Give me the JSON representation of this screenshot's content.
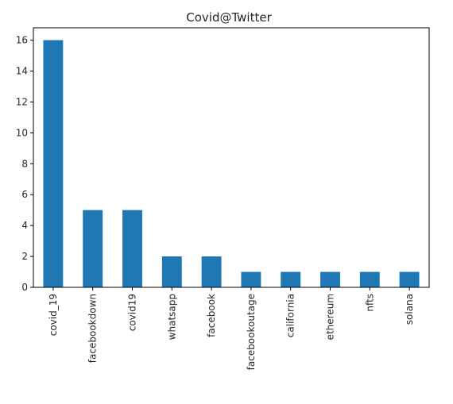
{
  "chart_data": {
    "type": "bar",
    "title": "Covid@Twitter",
    "xlabel": "",
    "ylabel": "",
    "categories": [
      "covid_19",
      "facebookdown",
      "covid19",
      "whatsapp",
      "facebook",
      "facebookoutage",
      "california",
      "ethereum",
      "nfts",
      "solana"
    ],
    "values": [
      16,
      5,
      5,
      2,
      2,
      1,
      1,
      1,
      1,
      1
    ],
    "ylim": [
      0,
      16.8
    ],
    "yticks": [
      0,
      2,
      4,
      6,
      8,
      10,
      12,
      14,
      16
    ],
    "grid": false,
    "legend": "none",
    "bar_color": "#1f77b4"
  }
}
